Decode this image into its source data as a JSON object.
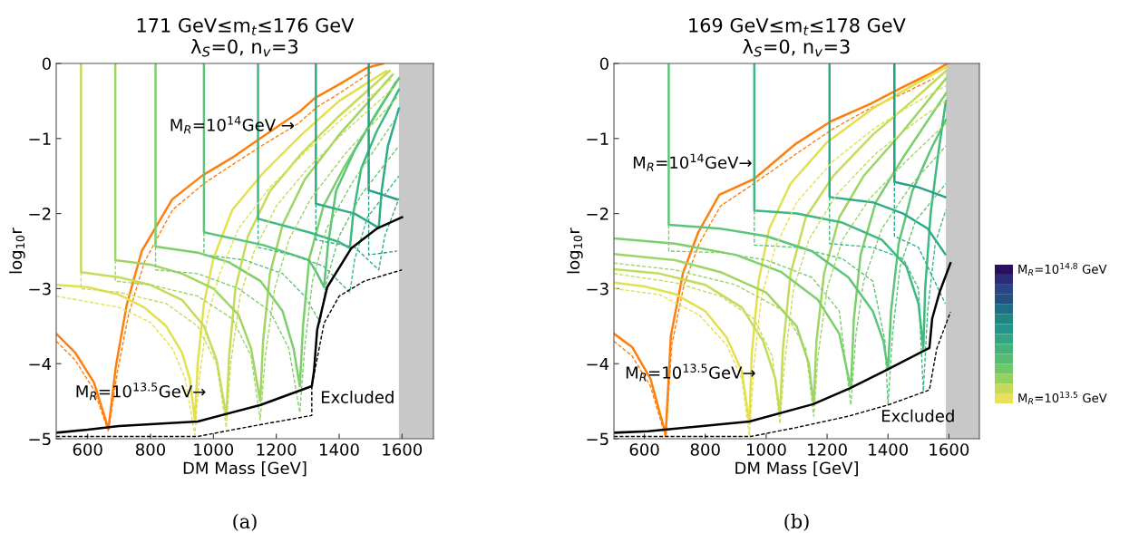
{
  "chart_data": [
    {
      "type": "line",
      "title": "171 GeV≤m$_{t}$≤176 GeV",
      "subtitle": "λ$_{S}$=0, n$_{v}$=3",
      "xlabel": "DM Mass [GeV]",
      "ylabel": "log$_{10}$r",
      "xlim": [
        500,
        1700
      ],
      "ylim": [
        -5,
        0
      ],
      "xticks": [
        600,
        800,
        1000,
        1200,
        1400,
        1600
      ],
      "yticks": [
        -5,
        -4,
        -3,
        -2,
        -1,
        0
      ],
      "grid": false,
      "legend": false,
      "bands": [
        {
          "axis": "x",
          "from": 1590,
          "to": 1700,
          "color": "#c8c8c8"
        }
      ],
      "annotations": [
        "M$_{R}$=10$^{14}$GeV →",
        "M$_{R}$=10$^{13.5}$GeV→",
        "Excluded",
        "(a)"
      ],
      "series": [
        {
          "color": "#ff7f0e",
          "x": [
            500,
            560,
            620,
            666,
            690,
            724,
            772,
            869,
            966,
            1062,
            1159,
            1275,
            1323,
            1400,
            1487,
            1540
          ],
          "values": [
            -3.6,
            -3.85,
            -4.25,
            -4.87,
            -4.03,
            -3.22,
            -2.5,
            -1.81,
            -1.49,
            -1.25,
            -0.97,
            -0.64,
            -0.46,
            -0.28,
            -0.06,
            0
          ]
        },
        {
          "color": "#ff7f0e",
          "line_style": "dashed",
          "x": [
            500,
            560,
            620,
            666,
            695,
            730,
            780,
            870,
            970,
            1060,
            1160,
            1270,
            1330,
            1400,
            1500
          ],
          "values": [
            -3.7,
            -3.95,
            -4.35,
            -4.9,
            -4.1,
            -3.35,
            -2.65,
            -1.95,
            -1.6,
            -1.35,
            -1.08,
            -0.8,
            -0.58,
            -0.4,
            -0.12
          ]
        },
        {
          "color": "#e3e04f",
          "x": [
            500,
            600,
            700,
            780,
            850,
            900,
            925,
            941,
            950,
            970,
            1000,
            1060,
            1160,
            1280,
            1400,
            1550
          ],
          "values": [
            -2.95,
            -2.98,
            -3.08,
            -3.25,
            -3.5,
            -3.85,
            -4.2,
            -4.75,
            -4.0,
            -3.2,
            -2.6,
            -1.95,
            -1.45,
            -0.95,
            -0.5,
            -0.1
          ]
        },
        {
          "color": "#c5dc5a",
          "x": [
            579,
            579,
            700,
            800,
            900,
            970,
            1010,
            1041,
            1050,
            1070,
            1110,
            1180,
            1280,
            1400,
            1560
          ],
          "values": [
            0,
            -2.78,
            -2.85,
            -2.95,
            -3.15,
            -3.5,
            -3.95,
            -4.7,
            -3.9,
            -3.0,
            -2.3,
            -1.7,
            -1.2,
            -0.7,
            -0.1
          ]
        },
        {
          "color": "#9fd563",
          "x": [
            688,
            688,
            800,
            900,
            1000,
            1080,
            1120,
            1149,
            1158,
            1180,
            1220,
            1290,
            1400,
            1570
          ],
          "values": [
            0,
            -2.62,
            -2.68,
            -2.8,
            -3.0,
            -3.35,
            -3.8,
            -4.5,
            -3.7,
            -2.8,
            -2.15,
            -1.55,
            -0.95,
            -0.15
          ]
        },
        {
          "color": "#7ccf6b",
          "x": [
            816,
            816,
            950,
            1050,
            1150,
            1220,
            1255,
            1275,
            1285,
            1305,
            1350,
            1420,
            1500,
            1580
          ],
          "values": [
            0,
            -2.44,
            -2.52,
            -2.65,
            -2.9,
            -3.3,
            -3.8,
            -4.3,
            -3.5,
            -2.6,
            -1.9,
            -1.35,
            -0.8,
            -0.25
          ]
        },
        {
          "color": "#5cc577",
          "x": [
            970,
            970,
            1159,
            1304,
            1330,
            1352,
            1365,
            1390,
            1450,
            1520,
            1590
          ],
          "values": [
            0,
            -2.25,
            -2.42,
            -2.62,
            -2.8,
            -2.98,
            -2.4,
            -1.7,
            -1.15,
            -0.65,
            -0.2
          ]
        },
        {
          "color": "#3fb981",
          "x": [
            1142,
            1142,
            1304,
            1400,
            1434,
            1445,
            1470,
            1520,
            1590
          ],
          "values": [
            0,
            -2.07,
            -2.25,
            -2.38,
            -2.46,
            -2.0,
            -1.4,
            -0.9,
            -0.35
          ]
        },
        {
          "color": "#2eab88",
          "x": [
            1326,
            1326,
            1449,
            1526,
            1535,
            1555,
            1590
          ],
          "values": [
            0,
            -1.87,
            -2.0,
            -2.19,
            -1.7,
            -1.1,
            -0.6
          ]
        },
        {
          "color": "#24a08a",
          "x": [
            1494,
            1494,
            1584
          ],
          "values": [
            0,
            -1.69,
            -1.81
          ]
        },
        {
          "color": "#e3e04f",
          "line_style": "dashed",
          "x": [
            500,
            700,
            800,
            870,
            910,
            941,
            955,
            980,
            1020,
            1080,
            1180,
            1300,
            1420,
            1570
          ],
          "values": [
            -3.1,
            -3.25,
            -3.45,
            -3.8,
            -4.2,
            -4.95,
            -4.2,
            -3.4,
            -2.8,
            -2.2,
            -1.65,
            -1.15,
            -0.7,
            -0.2
          ]
        },
        {
          "color": "#c5dc5a",
          "line_style": "dashed",
          "x": [
            579,
            579,
            700,
            850,
            950,
            1010,
            1041,
            1055,
            1085,
            1130,
            1200,
            1300,
            1420,
            1580
          ],
          "values": [
            -2.78,
            -3.0,
            -3.05,
            -3.2,
            -3.5,
            -4.0,
            -4.85,
            -4.0,
            -3.1,
            -2.5,
            -1.9,
            -1.4,
            -0.9,
            -0.3
          ]
        },
        {
          "color": "#9fd563",
          "line_style": "dashed",
          "x": [
            688,
            688,
            800,
            950,
            1060,
            1120,
            1149,
            1165,
            1195,
            1240,
            1310,
            1420,
            1585
          ],
          "values": [
            -2.62,
            -2.9,
            -2.95,
            -3.1,
            -3.4,
            -3.9,
            -4.75,
            -3.9,
            -3.0,
            -2.35,
            -1.8,
            -1.2,
            -0.45
          ]
        },
        {
          "color": "#7ccf6b",
          "line_style": "dashed",
          "x": [
            816,
            816,
            950,
            1080,
            1180,
            1240,
            1275,
            1290,
            1315,
            1360,
            1440,
            1585
          ],
          "values": [
            -2.44,
            -2.75,
            -2.8,
            -3.0,
            -3.3,
            -3.8,
            -4.65,
            -3.8,
            -2.9,
            -2.2,
            -1.6,
            -0.7
          ]
        },
        {
          "color": "#5cc577",
          "line_style": "dashed",
          "x": [
            970,
            970,
            1100,
            1220,
            1290,
            1340,
            1360,
            1400,
            1470,
            1590
          ],
          "values": [
            -2.25,
            -2.55,
            -2.62,
            -2.8,
            -3.1,
            -3.45,
            -2.9,
            -2.3,
            -1.75,
            -1.1
          ]
        },
        {
          "color": "#3fb981",
          "line_style": "dashed",
          "x": [
            1142,
            1142,
            1250,
            1350,
            1434,
            1450,
            1490,
            1590
          ],
          "values": [
            -2.07,
            -2.45,
            -2.55,
            -2.7,
            -3.05,
            -2.6,
            -2.05,
            -1.5
          ]
        },
        {
          "color": "#2eab88",
          "line_style": "dashed",
          "x": [
            1326,
            1326,
            1450,
            1526,
            1545,
            1590
          ],
          "values": [
            -1.87,
            -2.35,
            -2.45,
            -2.75,
            -2.3,
            -1.8
          ]
        },
        {
          "color": "#24a08a",
          "line_style": "dashed",
          "x": [
            1494,
            1494,
            1584
          ],
          "values": [
            -1.69,
            -2.55,
            -2.5
          ]
        },
        {
          "color": "#000000",
          "x": [
            500,
            600,
            700,
            950,
            1150,
            1313,
            1320,
            1330,
            1362,
            1439,
            1520,
            1600
          ],
          "values": [
            -4.92,
            -4.88,
            -4.83,
            -4.77,
            -4.55,
            -4.3,
            -4.1,
            -3.55,
            -2.98,
            -2.46,
            -2.2,
            -2.05
          ]
        },
        {
          "color": "#000000",
          "line_style": "dashed",
          "x": [
            500,
            950,
            1100,
            1313,
            1313,
            1352,
            1400,
            1480,
            1600
          ],
          "values": [
            -4.97,
            -4.97,
            -4.85,
            -4.69,
            -4.3,
            -3.46,
            -3.1,
            -2.9,
            -2.75
          ]
        }
      ]
    },
    {
      "type": "line",
      "title": "169 GeV≤m$_{t}$≤178 GeV",
      "subtitle": "λ$_{S}$=0, n$_{v}$=3",
      "xlabel": "DM Mass [GeV]",
      "ylabel": "log$_{10}$r",
      "xlim": [
        500,
        1700
      ],
      "ylim": [
        -5,
        0
      ],
      "xticks": [
        600,
        800,
        1000,
        1200,
        1400,
        1600
      ],
      "yticks": [
        -5,
        -4,
        -3,
        -2,
        -1,
        0
      ],
      "grid": false,
      "legend": false,
      "bands": [
        {
          "axis": "x",
          "from": 1590,
          "to": 1700,
          "color": "#c8c8c8"
        }
      ],
      "annotations": [
        "M$_{R}$=10$^{14}$GeV→",
        "M$_{R}$=10$^{13.5}$GeV→",
        "Excluded",
        "(b)"
      ],
      "series": [
        {
          "color": "#ff7f0e",
          "x": [
            500,
            560,
            620,
            670,
            687,
            727,
            777,
            846,
            960,
            1094,
            1213,
            1342,
            1441,
            1541,
            1595
          ],
          "values": [
            -3.6,
            -3.78,
            -4.2,
            -4.94,
            -3.63,
            -2.79,
            -2.25,
            -1.75,
            -1.54,
            -1.08,
            -0.77,
            -0.54,
            -0.33,
            -0.13,
            0
          ]
        },
        {
          "color": "#ff7f0e",
          "line_style": "dashed",
          "x": [
            500,
            560,
            620,
            670,
            690,
            730,
            780,
            850,
            960,
            1100,
            1220,
            1340,
            1450,
            1550
          ],
          "values": [
            -3.7,
            -3.9,
            -4.3,
            -4.98,
            -3.75,
            -2.95,
            -2.4,
            -1.9,
            -1.6,
            -1.2,
            -0.87,
            -0.6,
            -0.4,
            -0.2
          ]
        },
        {
          "color": "#e3e04f",
          "x": [
            500,
            600,
            700,
            800,
            870,
            920,
            945,
            952,
            975,
            1010,
            1080,
            1200,
            1350,
            1500,
            1590
          ],
          "values": [
            -2.92,
            -2.97,
            -3.07,
            -3.3,
            -3.65,
            -4.1,
            -4.8,
            -3.9,
            -2.9,
            -2.2,
            -1.6,
            -1.05,
            -0.6,
            -0.25,
            -0.05
          ]
        },
        {
          "color": "#c5dc5a",
          "x": [
            500,
            650,
            800,
            920,
            990,
            1030,
            1045,
            1055,
            1080,
            1130,
            1220,
            1350,
            1480,
            1590
          ],
          "values": [
            -2.74,
            -2.8,
            -2.95,
            -3.25,
            -3.7,
            -4.2,
            -4.67,
            -3.8,
            -2.8,
            -2.05,
            -1.5,
            -0.95,
            -0.5,
            -0.1
          ]
        },
        {
          "color": "#9fd563",
          "x": [
            500,
            700,
            850,
            1000,
            1100,
            1140,
            1156,
            1165,
            1190,
            1240,
            1320,
            1450,
            1590
          ],
          "values": [
            -2.54,
            -2.62,
            -2.78,
            -3.05,
            -3.5,
            -4.0,
            -4.55,
            -3.7,
            -2.8,
            -2.05,
            -1.5,
            -0.9,
            -0.2
          ]
        },
        {
          "color": "#7ccf6b",
          "x": [
            500,
            700,
            900,
            1050,
            1170,
            1240,
            1278,
            1288,
            1310,
            1360,
            1450,
            1590
          ],
          "values": [
            -2.33,
            -2.4,
            -2.55,
            -2.78,
            -3.15,
            -3.6,
            -4.33,
            -3.4,
            -2.55,
            -1.85,
            -1.25,
            -0.4
          ]
        },
        {
          "color": "#5cc577",
          "x": [
            680,
            680,
            850,
            1000,
            1150,
            1270,
            1350,
            1385,
            1400,
            1410,
            1435,
            1480,
            1540,
            1590
          ],
          "values": [
            0,
            -2.15,
            -2.2,
            -2.3,
            -2.5,
            -2.85,
            -3.3,
            -3.7,
            -4.08,
            -3.3,
            -2.4,
            -1.7,
            -1.15,
            -0.75
          ]
        },
        {
          "color": "#3fb981",
          "x": [
            961,
            961,
            1100,
            1250,
            1380,
            1460,
            1500,
            1516,
            1522,
            1540,
            1565,
            1590
          ],
          "values": [
            0,
            -1.96,
            -2.0,
            -2.12,
            -2.35,
            -2.7,
            -3.2,
            -3.8,
            -3.0,
            -2.0,
            -1.2,
            -0.5
          ]
        },
        {
          "color": "#2eab88",
          "x": [
            1208,
            1208,
            1350,
            1450,
            1530,
            1588
          ],
          "values": [
            0,
            -1.78,
            -1.85,
            -2.0,
            -2.2,
            -2.54
          ]
        },
        {
          "color": "#24a08a",
          "x": [
            1421,
            1421,
            1500,
            1588
          ],
          "values": [
            0,
            -1.58,
            -1.65,
            -1.78
          ]
        },
        {
          "color": "#e3e04f",
          "line_style": "dashed",
          "x": [
            500,
            650,
            780,
            870,
            920,
            945,
            960,
            985,
            1030,
            1100,
            1220,
            1360,
            1500,
            1590
          ],
          "values": [
            -3.0,
            -3.08,
            -3.35,
            -3.75,
            -4.2,
            -4.97,
            -4.0,
            -3.1,
            -2.45,
            -1.85,
            -1.3,
            -0.85,
            -0.5,
            -0.3
          ]
        },
        {
          "color": "#c5dc5a",
          "line_style": "dashed",
          "x": [
            500,
            700,
            850,
            960,
            1020,
            1045,
            1060,
            1090,
            1140,
            1230,
            1360,
            1500,
            1590
          ],
          "values": [
            -2.8,
            -2.92,
            -3.1,
            -3.4,
            -3.9,
            -4.8,
            -4.0,
            -3.0,
            -2.35,
            -1.75,
            -1.2,
            -0.75,
            -0.5
          ]
        },
        {
          "color": "#9fd563",
          "line_style": "dashed",
          "x": [
            500,
            700,
            900,
            1060,
            1130,
            1156,
            1170,
            1200,
            1250,
            1340,
            1460,
            1590
          ],
          "values": [
            -2.66,
            -2.75,
            -2.95,
            -3.3,
            -3.8,
            -4.7,
            -3.9,
            -3.0,
            -2.35,
            -1.8,
            -1.3,
            -0.8
          ]
        },
        {
          "color": "#7ccf6b",
          "line_style": "dashed",
          "x": [
            680,
            680,
            850,
            1000,
            1150,
            1240,
            1278,
            1295,
            1320,
            1380,
            1480,
            1590
          ],
          "values": [
            -2.15,
            -2.5,
            -2.52,
            -2.62,
            -2.85,
            -3.3,
            -4.55,
            -3.6,
            -2.9,
            -2.2,
            -1.6,
            -1.1
          ]
        },
        {
          "color": "#5cc577",
          "line_style": "dashed",
          "x": [
            961,
            961,
            1100,
            1250,
            1350,
            1390,
            1400,
            1415,
            1440,
            1490,
            1590
          ],
          "values": [
            -1.96,
            -2.42,
            -2.45,
            -2.6,
            -2.9,
            -3.7,
            -4.55,
            -3.6,
            -2.7,
            -2.1,
            -1.6
          ]
        },
        {
          "color": "#3fb981",
          "line_style": "dashed",
          "x": [
            1208,
            1208,
            1350,
            1450,
            1500,
            1516,
            1530,
            1555,
            1590
          ],
          "values": [
            -1.78,
            -2.4,
            -2.45,
            -2.6,
            -3.0,
            -4.37,
            -3.3,
            -2.4,
            -1.95
          ]
        },
        {
          "color": "#2eab88",
          "line_style": "dashed",
          "x": [
            1421,
            1421,
            1500,
            1588
          ],
          "values": [
            -1.58,
            -2.3,
            -2.45,
            -3.2
          ]
        },
        {
          "color": "#000000",
          "x": [
            500,
            613,
            945,
            1154,
            1273,
            1397,
            1536,
            1545,
            1570,
            1605
          ],
          "values": [
            -4.92,
            -4.9,
            -4.77,
            -4.54,
            -4.33,
            -4.08,
            -3.79,
            -3.4,
            -3.04,
            -2.66
          ]
        },
        {
          "color": "#000000",
          "line_style": "dashed",
          "x": [
            500,
            950,
            1100,
            1270,
            1400,
            1536,
            1560,
            1605
          ],
          "values": [
            -4.97,
            -4.97,
            -4.85,
            -4.7,
            -4.55,
            -4.35,
            -3.8,
            -3.31
          ]
        }
      ]
    },
    {
      "type": "other",
      "annotations": [
        "M$_{R}$=10$^{14.8}$ GeV",
        "M$_{R}$=10$^{13.5}$ GeV"
      ],
      "colors": [
        "#2a0f5e",
        "#2c2b78",
        "#2a4585",
        "#24517f",
        "#1e6e87",
        "#208583",
        "#24958a",
        "#32a584",
        "#44b27c",
        "#56bc73",
        "#6ec76a",
        "#93d25d",
        "#c5da58",
        "#e8e15a"
      ]
    }
  ]
}
